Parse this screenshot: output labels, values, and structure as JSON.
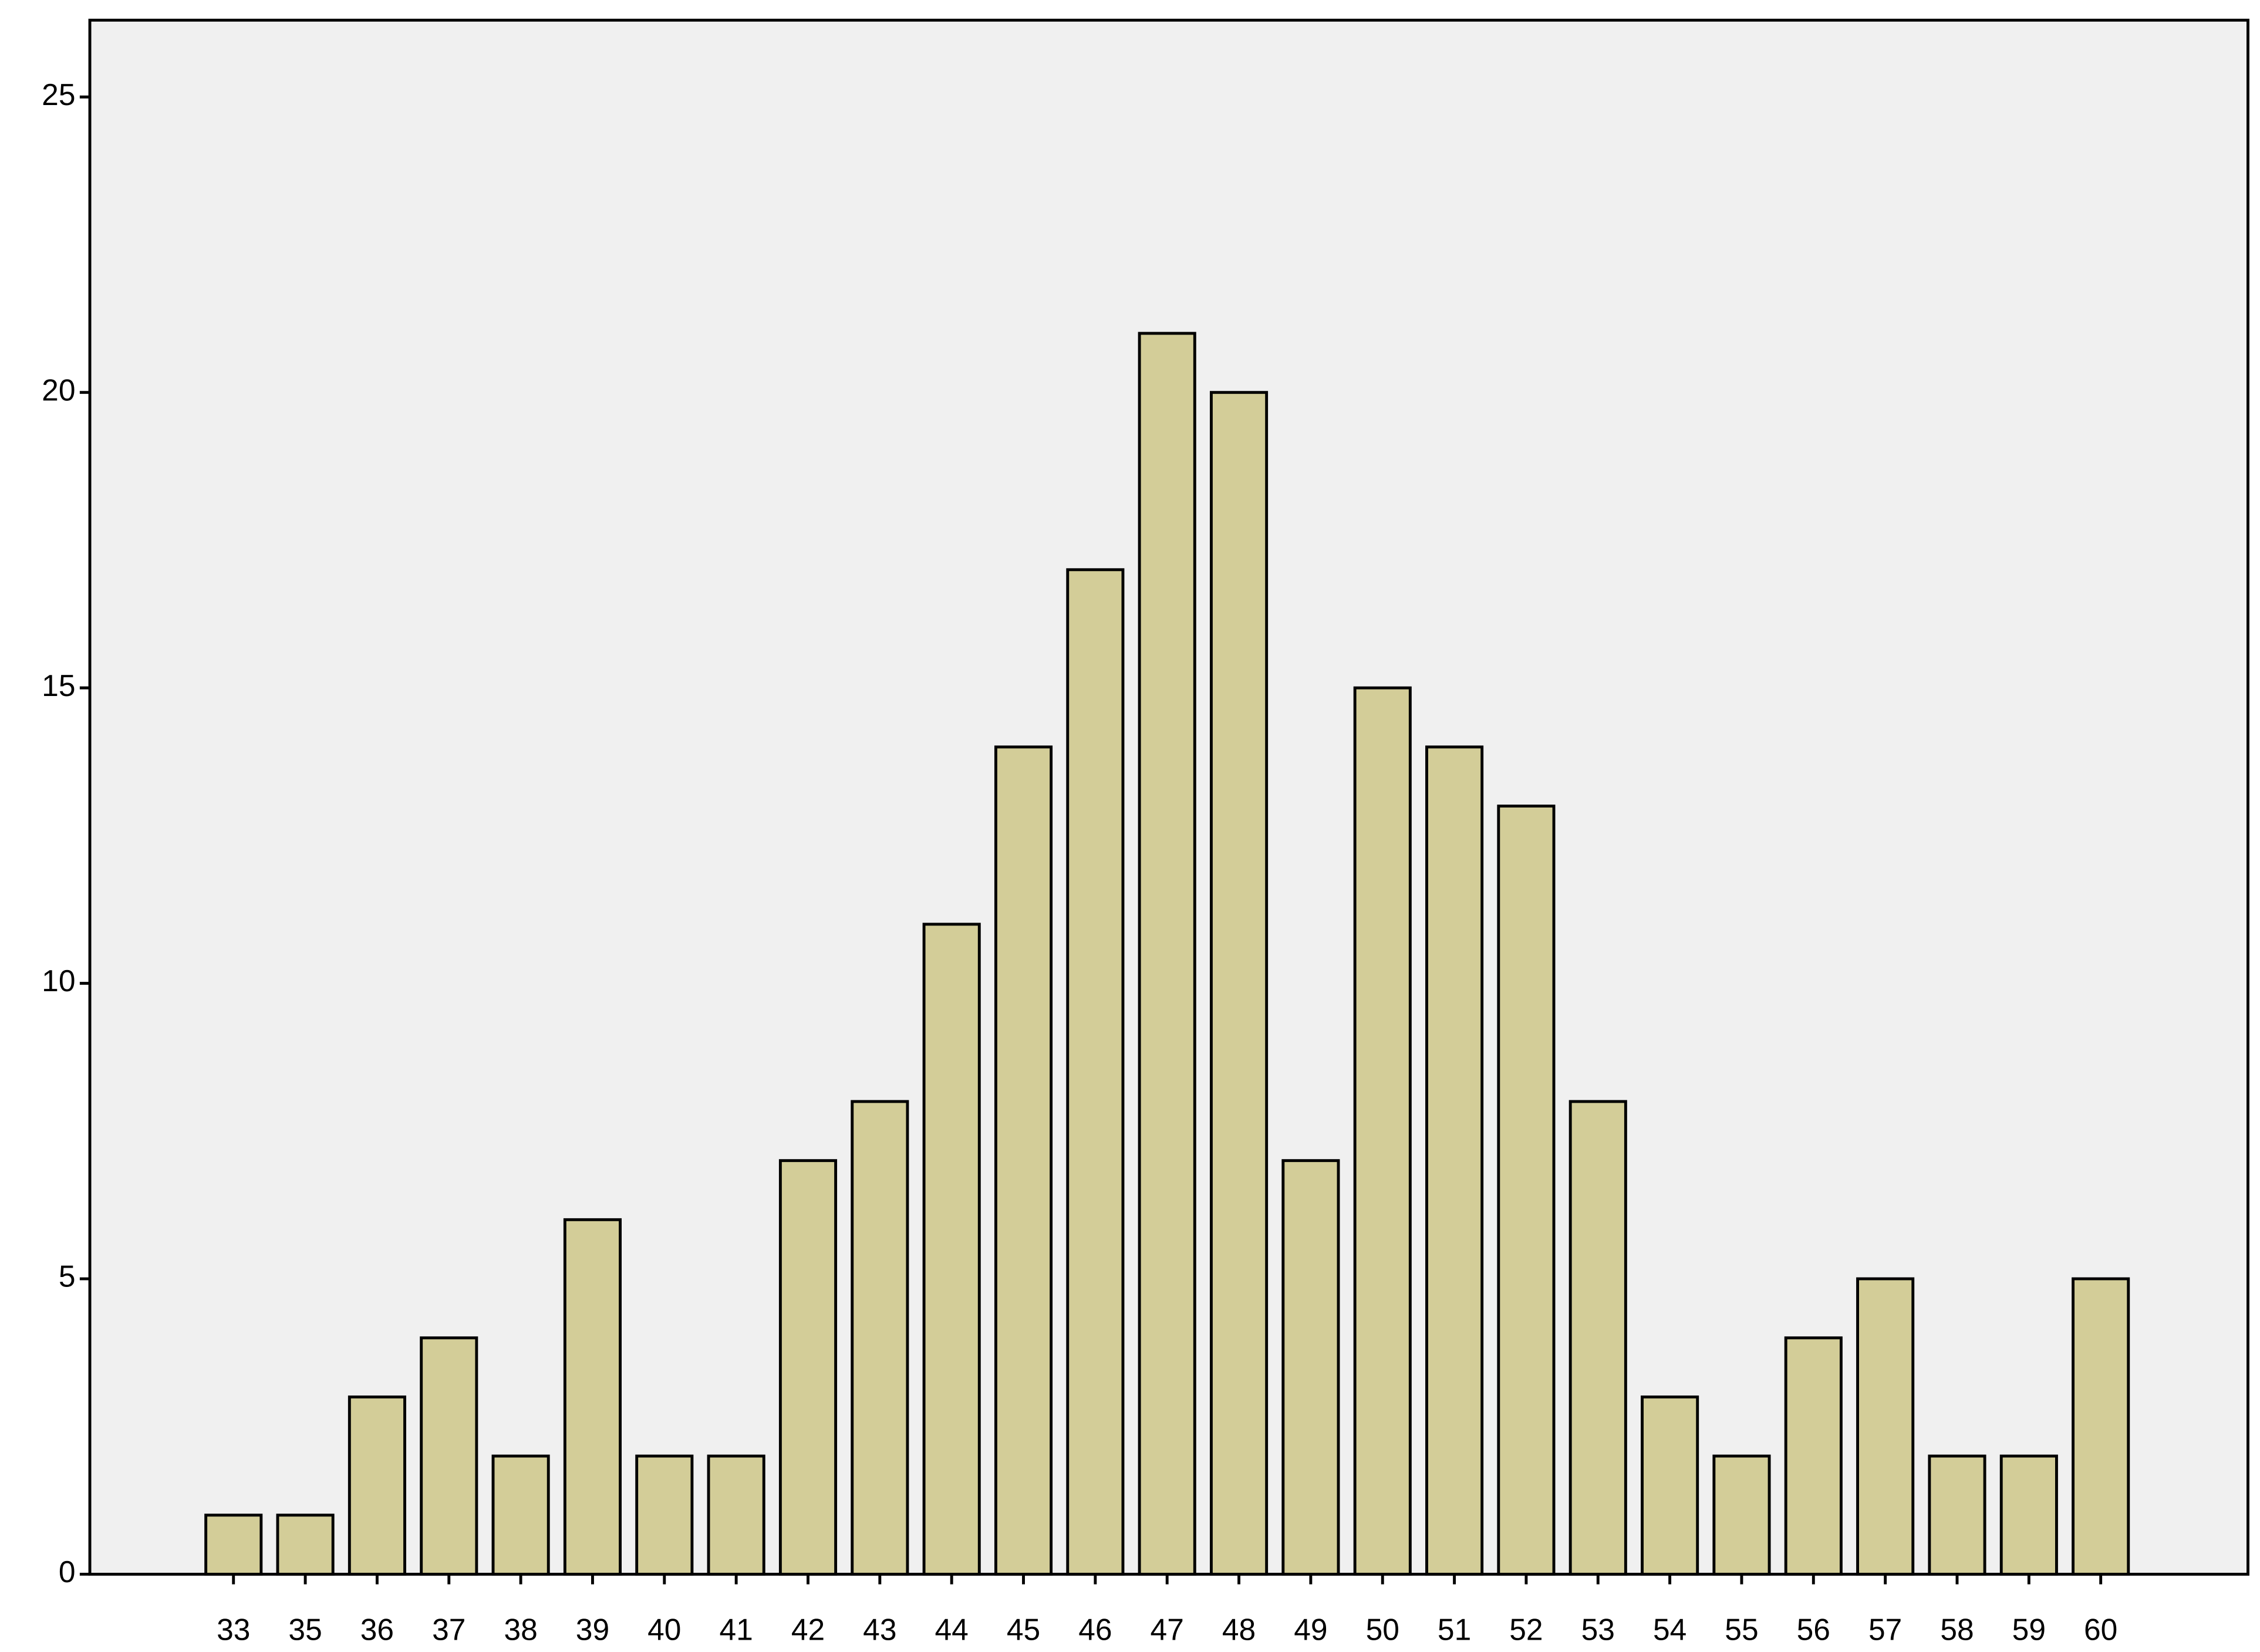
{
  "chart_data": {
    "type": "bar",
    "categories": [
      "33",
      "35",
      "36",
      "37",
      "38",
      "39",
      "40",
      "41",
      "42",
      "43",
      "44",
      "45",
      "46",
      "47",
      "48",
      "49",
      "50",
      "51",
      "52",
      "53",
      "54",
      "55",
      "56",
      "57",
      "58",
      "59",
      "60"
    ],
    "values": [
      1,
      1,
      3,
      4,
      2,
      6,
      2,
      2,
      7,
      8,
      11,
      14,
      17,
      21,
      20,
      7,
      15,
      14,
      13,
      8,
      3,
      2,
      4,
      5,
      2,
      2,
      5
    ],
    "color": "#d3cd98",
    "ylim": [
      0,
      26.3
    ],
    "yticks": [
      0,
      5,
      10,
      15,
      20,
      25
    ],
    "grid": false
  }
}
